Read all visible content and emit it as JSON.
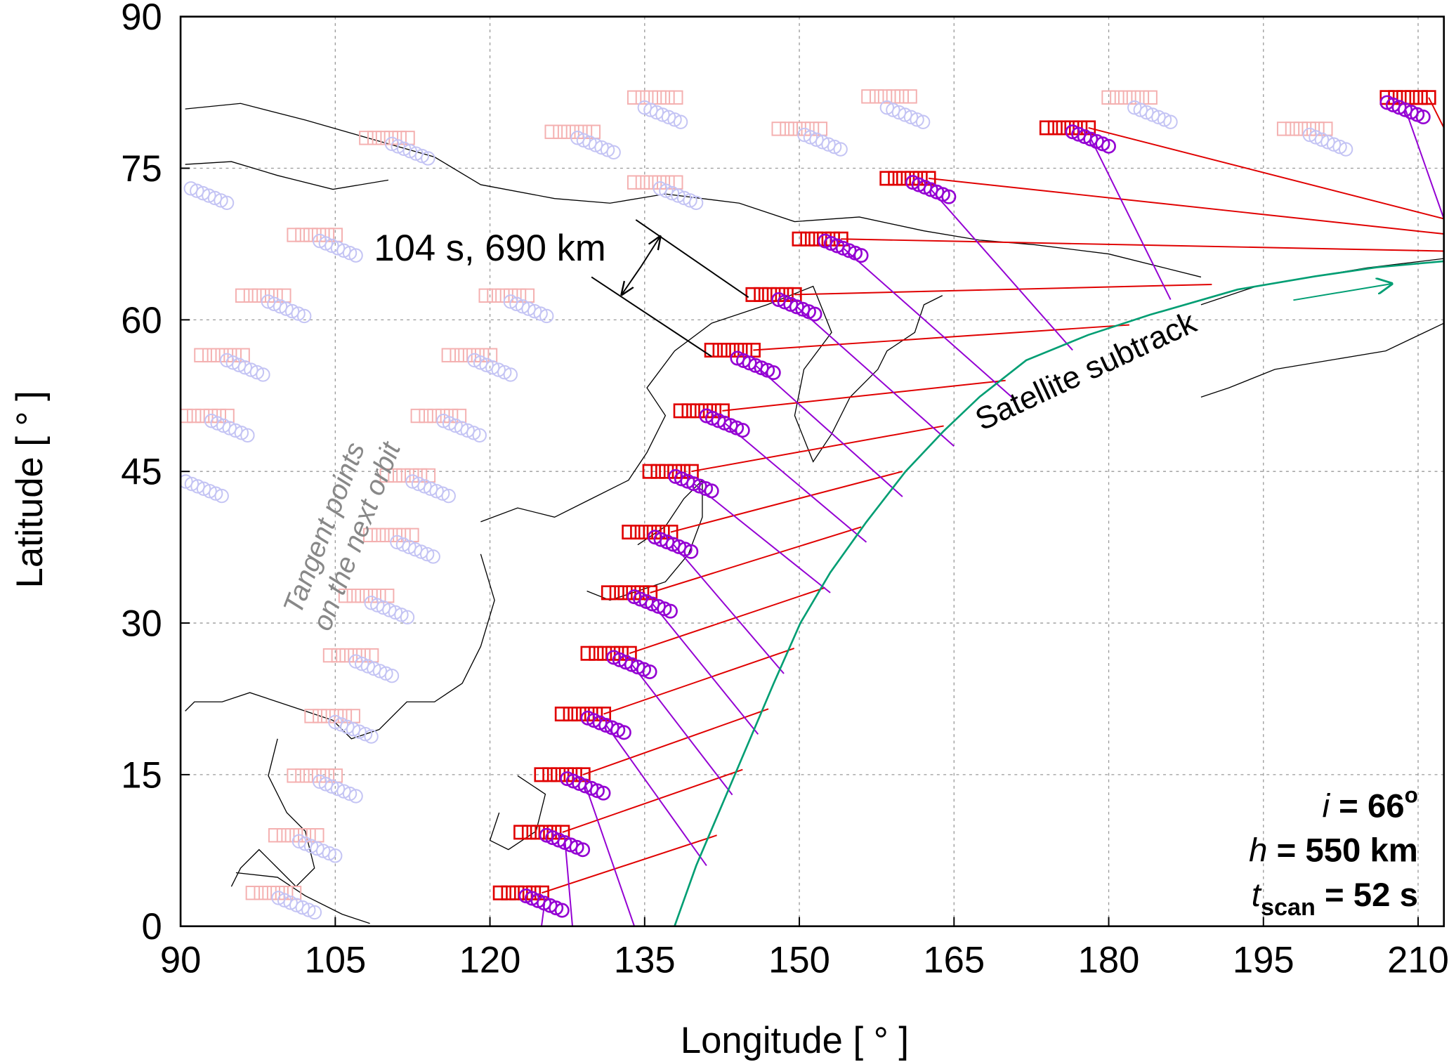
{
  "chart_data": {
    "type": "orbit-map",
    "x_label": "Longitude [ ° ]",
    "y_label": "Latitude [ ° ]",
    "xlim": [
      90,
      212.5
    ],
    "ylim": [
      0,
      90
    ],
    "xticks": [
      90,
      105,
      120,
      135,
      150,
      165,
      180,
      195,
      210
    ],
    "yticks": [
      0,
      15,
      30,
      45,
      60,
      75,
      90
    ],
    "grid": true,
    "subtrack": {
      "label": "Satellite subtrack",
      "color": "#009e73",
      "lon": [
        137.9,
        140,
        142.5,
        145,
        147.5,
        150.1,
        153,
        156.5,
        160.3,
        164,
        167.5,
        172,
        178,
        184,
        192.5,
        200,
        206,
        212.5
      ],
      "lat": [
        0,
        6,
        12,
        18,
        24,
        30,
        35,
        40,
        45,
        49,
        52.4,
        56,
        58.5,
        60.5,
        63,
        64.3,
        65.2,
        65.8
      ]
    },
    "current_orbit": {
      "square_color": "#e00000",
      "circle_color": "#9400d3",
      "squares": {
        "lon": [
          121,
          123,
          125,
          127,
          129.5,
          131.5,
          133.5,
          135.5,
          138.5,
          141.5,
          145.5,
          150,
          158.5,
          174,
          207
        ],
        "lat": [
          3.3,
          9.3,
          15,
          21,
          27,
          33,
          39,
          45,
          51,
          57,
          62.5,
          68,
          74,
          79,
          82
        ]
      },
      "square_links": {
        "lon": [
          142,
          144.5,
          147,
          149.5,
          152.5,
          156,
          160,
          164,
          170,
          182,
          190,
          212.5,
          212.5,
          212.5,
          212.5
        ],
        "lat": [
          9,
          15.5,
          21.5,
          27.5,
          33.5,
          39.5,
          45,
          49.5,
          54,
          59.5,
          63.5,
          66.8,
          68.5,
          70,
          79
        ]
      },
      "circles": {
        "lon": [
          123.5,
          125.5,
          127.5,
          129.5,
          132,
          134,
          136,
          138,
          141,
          144,
          148,
          152.5,
          161,
          176.5,
          207
        ],
        "lat": [
          3,
          9,
          14.6,
          20.6,
          26.6,
          32.6,
          38.5,
          44.5,
          50.5,
          56.2,
          62,
          67.8,
          73.6,
          78.6,
          81.5
        ]
      },
      "circle_links": {
        "lon": [
          125,
          128,
          134,
          141,
          143.5,
          146,
          148.5,
          153,
          156.5,
          160,
          165,
          171,
          176.5,
          186,
          212.5
        ],
        "lat": [
          0,
          0,
          0,
          6,
          13,
          19,
          25,
          33,
          38,
          42.5,
          47.5,
          52,
          57,
          62,
          70
        ]
      }
    },
    "next_orbit": {
      "label_lines": [
        "Tangent points",
        "on the next orbit"
      ],
      "square_color": "#f4b0b0",
      "circle_color": "#c4c4f4",
      "squares": {
        "lon": [
          92,
          90.5,
          96,
          101,
          126,
          134,
          134,
          119.6,
          116,
          113,
          110,
          108.4,
          106,
          104.5,
          102.7,
          101,
          99.2,
          97,
          148,
          156.7,
          180,
          197,
          108
        ],
        "lat": [
          56.5,
          50.5,
          62.4,
          68.4,
          78.6,
          82,
          73.6,
          62.4,
          56.5,
          50.5,
          44.6,
          38.7,
          32.7,
          26.8,
          20.8,
          14.9,
          9,
          3.3,
          78.9,
          82.1,
          82,
          78.9,
          78
        ]
      },
      "circles": {
        "lon": [
          94.5,
          93,
          98.5,
          103.5,
          128.5,
          135,
          136.5,
          122,
          118.5,
          115.5,
          112.5,
          111,
          108.5,
          107,
          105,
          103.5,
          101.5,
          99.5,
          150.5,
          158.5,
          182.5,
          199.5,
          110.5,
          90.5,
          91
        ],
        "lat": [
          56,
          50,
          61.8,
          67.8,
          78,
          81,
          73,
          61.8,
          56,
          50,
          44,
          38,
          32,
          26.2,
          20.2,
          14.3,
          8.4,
          2.8,
          78.3,
          81,
          81,
          78.3,
          77.4,
          44,
          73
        ]
      }
    },
    "dimension_label": "104 s, 690 km",
    "params": [
      {
        "symbol": "i",
        "rest": " = 66",
        "sup": "o"
      },
      {
        "symbol": "h",
        "rest": " = 550 km"
      },
      {
        "symbol": "t",
        "sub": "scan",
        "rest": " = 52 s"
      }
    ]
  }
}
